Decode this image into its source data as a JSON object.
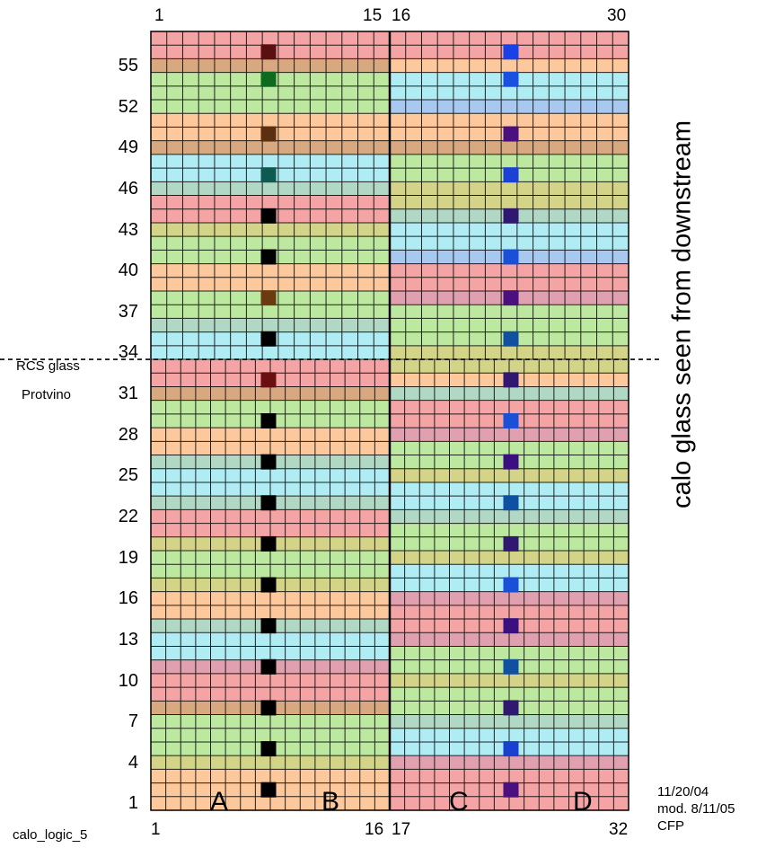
{
  "title": "calo glass seen from downstream",
  "top_col_labels": [
    "1",
    "15",
    "16",
    "30"
  ],
  "bottom_col_labels": [
    "1",
    "16",
    "17",
    "32"
  ],
  "row_labels": [
    "55",
    "52",
    "49",
    "46",
    "43",
    "40",
    "37",
    "34",
    "31",
    "28",
    "25",
    "22",
    "19",
    "16",
    "13",
    "10",
    "7",
    "4",
    "1"
  ],
  "region_labels": {
    "upper": "RCS glass",
    "lower": "Protvino"
  },
  "quadrants": [
    "A",
    "B",
    "C",
    "D"
  ],
  "figure_id": "calo_logic_5",
  "notes": [
    "11/20/04",
    "mod. 8/11/05",
    "CFP"
  ],
  "grid": {
    "rows": 57,
    "upper_rows": 24,
    "upper_cols": 30,
    "lower_cols": 32,
    "dashed_boundary": true
  },
  "colors": {
    "red": "#f4a4a4",
    "orange": "#fcc89c",
    "green": "#bce8a0",
    "cyan": "#b0ecf4",
    "olive": "#d4d488",
    "teal": "#b0d8c4",
    "brown": "#d8a880",
    "blue": "#a8c8f0",
    "purple": "#b4a8e8",
    "pink": "#e0a0b0",
    "gridline": "#000000"
  },
  "left_bands": [
    {
      "from": 1,
      "to": 3,
      "color": "orange"
    },
    {
      "from": 4,
      "to": 4,
      "color": "olive"
    },
    {
      "from": 5,
      "to": 7,
      "color": "green"
    },
    {
      "from": 8,
      "to": 8,
      "color": "brown"
    },
    {
      "from": 9,
      "to": 10,
      "color": "red"
    },
    {
      "from": 11,
      "to": 11,
      "color": "pink"
    },
    {
      "from": 12,
      "to": 13,
      "color": "cyan"
    },
    {
      "from": 14,
      "to": 14,
      "color": "teal"
    },
    {
      "from": 15,
      "to": 16,
      "color": "orange"
    },
    {
      "from": 17,
      "to": 17,
      "color": "olive"
    },
    {
      "from": 18,
      "to": 19,
      "color": "green"
    },
    {
      "from": 20,
      "to": 20,
      "color": "olive"
    },
    {
      "from": 21,
      "to": 22,
      "color": "red"
    },
    {
      "from": 23,
      "to": 23,
      "color": "teal"
    },
    {
      "from": 24,
      "to": 25,
      "color": "cyan"
    },
    {
      "from": 26,
      "to": 26,
      "color": "teal"
    },
    {
      "from": 27,
      "to": 28,
      "color": "orange"
    },
    {
      "from": 29,
      "to": 30,
      "color": "green"
    },
    {
      "from": 31,
      "to": 31,
      "color": "brown"
    },
    {
      "from": 32,
      "to": 33,
      "color": "red"
    },
    {
      "from": 34,
      "to": 35,
      "color": "cyan"
    },
    {
      "from": 36,
      "to": 36,
      "color": "teal"
    },
    {
      "from": 37,
      "to": 38,
      "color": "green"
    },
    {
      "from": 39,
      "to": 40,
      "color": "orange"
    },
    {
      "from": 41,
      "to": 42,
      "color": "green"
    },
    {
      "from": 43,
      "to": 43,
      "color": "olive"
    },
    {
      "from": 44,
      "to": 45,
      "color": "red"
    },
    {
      "from": 46,
      "to": 46,
      "color": "teal"
    },
    {
      "from": 47,
      "to": 48,
      "color": "cyan"
    },
    {
      "from": 49,
      "to": 49,
      "color": "brown"
    },
    {
      "from": 50,
      "to": 51,
      "color": "orange"
    },
    {
      "from": 52,
      "to": 52,
      "color": "green"
    },
    {
      "from": 53,
      "to": 54,
      "color": "green"
    },
    {
      "from": 55,
      "to": 55,
      "color": "brown"
    },
    {
      "from": 56,
      "to": 57,
      "color": "red"
    }
  ],
  "right_bands": [
    {
      "from": 1,
      "to": 3,
      "color": "red"
    },
    {
      "from": 4,
      "to": 4,
      "color": "pink"
    },
    {
      "from": 5,
      "to": 6,
      "color": "cyan"
    },
    {
      "from": 7,
      "to": 7,
      "color": "teal"
    },
    {
      "from": 8,
      "to": 9,
      "color": "green"
    },
    {
      "from": 10,
      "to": 10,
      "color": "olive"
    },
    {
      "from": 11,
      "to": 12,
      "color": "green"
    },
    {
      "from": 13,
      "to": 13,
      "color": "pink"
    },
    {
      "from": 14,
      "to": 15,
      "color": "red"
    },
    {
      "from": 16,
      "to": 16,
      "color": "pink"
    },
    {
      "from": 17,
      "to": 18,
      "color": "cyan"
    },
    {
      "from": 19,
      "to": 19,
      "color": "olive"
    },
    {
      "from": 20,
      "to": 21,
      "color": "green"
    },
    {
      "from": 22,
      "to": 22,
      "color": "teal"
    },
    {
      "from": 23,
      "to": 24,
      "color": "cyan"
    },
    {
      "from": 25,
      "to": 25,
      "color": "olive"
    },
    {
      "from": 26,
      "to": 27,
      "color": "green"
    },
    {
      "from": 28,
      "to": 28,
      "color": "pink"
    },
    {
      "from": 29,
      "to": 30,
      "color": "red"
    },
    {
      "from": 31,
      "to": 31,
      "color": "teal"
    },
    {
      "from": 32,
      "to": 32,
      "color": "orange"
    },
    {
      "from": 33,
      "to": 34,
      "color": "olive"
    },
    {
      "from": 35,
      "to": 35,
      "color": "green"
    },
    {
      "from": 36,
      "to": 37,
      "color": "green"
    },
    {
      "from": 38,
      "to": 38,
      "color": "pink"
    },
    {
      "from": 39,
      "to": 40,
      "color": "red"
    },
    {
      "from": 41,
      "to": 41,
      "color": "blue"
    },
    {
      "from": 42,
      "to": 43,
      "color": "cyan"
    },
    {
      "from": 44,
      "to": 44,
      "color": "teal"
    },
    {
      "from": 45,
      "to": 46,
      "color": "olive"
    },
    {
      "from": 47,
      "to": 48,
      "color": "green"
    },
    {
      "from": 49,
      "to": 49,
      "color": "brown"
    },
    {
      "from": 50,
      "to": 51,
      "color": "orange"
    },
    {
      "from": 52,
      "to": 52,
      "color": "blue"
    },
    {
      "from": 53,
      "to": 54,
      "color": "cyan"
    },
    {
      "from": 55,
      "to": 55,
      "color": "orange"
    },
    {
      "from": 56,
      "to": 57,
      "color": "red"
    }
  ],
  "left_markers": [
    {
      "row": 2,
      "color": "#000000"
    },
    {
      "row": 5,
      "color": "#000000"
    },
    {
      "row": 8,
      "color": "#000000"
    },
    {
      "row": 11,
      "color": "#000000"
    },
    {
      "row": 14,
      "color": "#000000"
    },
    {
      "row": 17,
      "color": "#000000"
    },
    {
      "row": 20,
      "color": "#000000"
    },
    {
      "row": 23,
      "color": "#000000"
    },
    {
      "row": 26,
      "color": "#000000"
    },
    {
      "row": 29,
      "color": "#000000"
    },
    {
      "row": 32,
      "color": "#6a1010"
    },
    {
      "row": 35,
      "color": "#000000"
    },
    {
      "row": 38,
      "color": "#6a3a10"
    },
    {
      "row": 41,
      "color": "#000000"
    },
    {
      "row": 44,
      "color": "#000000"
    },
    {
      "row": 47,
      "color": "#0e5a52"
    },
    {
      "row": 50,
      "color": "#5a3010"
    },
    {
      "row": 54,
      "color": "#0e6a1e"
    },
    {
      "row": 56,
      "color": "#5a1010"
    }
  ],
  "right_markers": [
    {
      "row": 2,
      "color": "#4a1080"
    },
    {
      "row": 5,
      "color": "#1a40d0"
    },
    {
      "row": 8,
      "color": "#301870"
    },
    {
      "row": 11,
      "color": "#1050a0"
    },
    {
      "row": 14,
      "color": "#3a1080"
    },
    {
      "row": 17,
      "color": "#1a50d8"
    },
    {
      "row": 20,
      "color": "#301870"
    },
    {
      "row": 23,
      "color": "#1050a0"
    },
    {
      "row": 26,
      "color": "#3a1080"
    },
    {
      "row": 29,
      "color": "#1a50d8"
    },
    {
      "row": 32,
      "color": "#301870"
    },
    {
      "row": 35,
      "color": "#1050a0"
    },
    {
      "row": 38,
      "color": "#4a1080"
    },
    {
      "row": 41,
      "color": "#1a50d8"
    },
    {
      "row": 44,
      "color": "#301870"
    },
    {
      "row": 47,
      "color": "#1a40d8"
    },
    {
      "row": 50,
      "color": "#4a1080"
    },
    {
      "row": 54,
      "color": "#1a50e0"
    },
    {
      "row": 56,
      "color": "#1a40e8"
    }
  ]
}
